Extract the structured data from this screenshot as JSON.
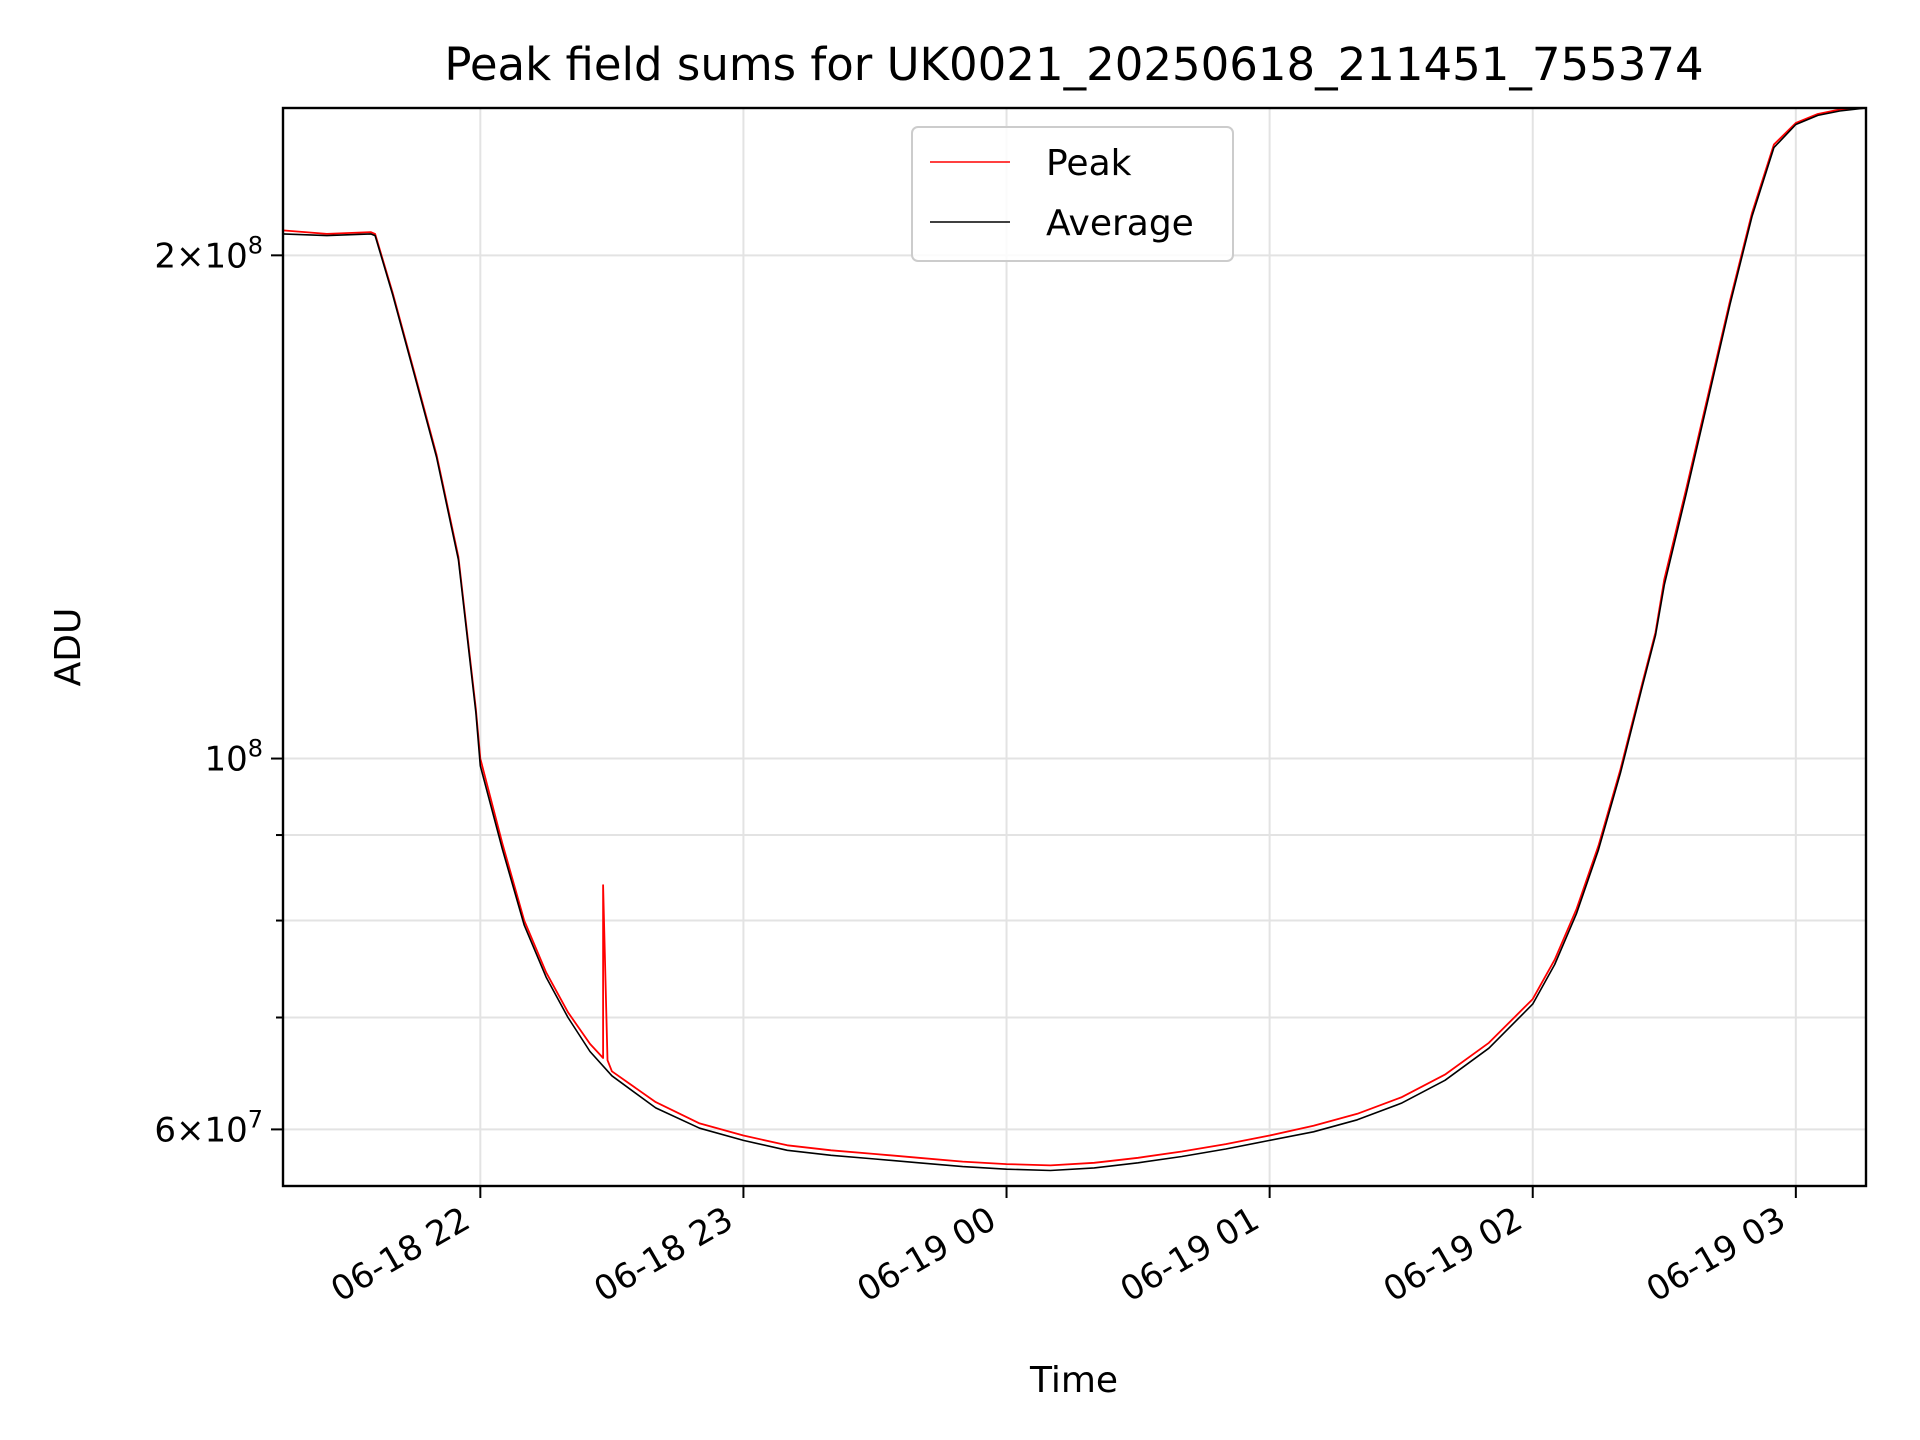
{
  "chart_data": {
    "type": "line",
    "title": "Peak field sums for UK0021_20250618_211451_755374",
    "xlabel": "Time",
    "ylabel": "ADU",
    "y_scale": "log",
    "x_range": [
      "2025-06-18 21:15",
      "2025-06-19 03:16"
    ],
    "ylim": [
      55500000,
      245000000
    ],
    "grid": true,
    "legend_position": "top-center",
    "x_ticks": [
      {
        "value": "2025-06-18 22:00",
        "label": "06-18 22"
      },
      {
        "value": "2025-06-18 23:00",
        "label": "06-18 23"
      },
      {
        "value": "2025-06-19 00:00",
        "label": "06-19 00"
      },
      {
        "value": "2025-06-19 01:00",
        "label": "06-19 01"
      },
      {
        "value": "2025-06-19 02:00",
        "label": "06-19 02"
      },
      {
        "value": "2025-06-19 03:00",
        "label": "06-19 03"
      }
    ],
    "y_ticks": [
      {
        "value": 60000000,
        "base": "6",
        "exp": "7"
      },
      {
        "value": 100000000,
        "base": "",
        "exp": "8"
      },
      {
        "value": 200000000,
        "base": "2",
        "exp": "8"
      }
    ],
    "y_minor_ticks": [
      70000000,
      80000000,
      90000000
    ],
    "series": [
      {
        "name": "Peak",
        "color": "#ff0000",
        "x": [
          "2025-06-18 21:15",
          "2025-06-18 21:25",
          "2025-06-18 21:35",
          "2025-06-18 21:36",
          "2025-06-18 21:40",
          "2025-06-18 21:45",
          "2025-06-18 21:50",
          "2025-06-18 21:55",
          "2025-06-18 21:59",
          "2025-06-18 22:00",
          "2025-06-18 22:05",
          "2025-06-18 22:10",
          "2025-06-18 22:15",
          "2025-06-18 22:20",
          "2025-06-18 22:25",
          "2025-06-18 22:28",
          "2025-06-18 22:28",
          "2025-06-18 22:29",
          "2025-06-18 22:30",
          "2025-06-18 22:40",
          "2025-06-18 22:50",
          "2025-06-18 23:00",
          "2025-06-18 23:10",
          "2025-06-18 23:20",
          "2025-06-18 23:30",
          "2025-06-18 23:40",
          "2025-06-18 23:50",
          "2025-06-19 00:00",
          "2025-06-19 00:10",
          "2025-06-19 00:20",
          "2025-06-19 00:30",
          "2025-06-19 00:40",
          "2025-06-19 00:50",
          "2025-06-19 01:00",
          "2025-06-19 01:10",
          "2025-06-19 01:20",
          "2025-06-19 01:30",
          "2025-06-19 01:40",
          "2025-06-19 01:50",
          "2025-06-19 02:00",
          "2025-06-19 02:05",
          "2025-06-19 02:10",
          "2025-06-19 02:15",
          "2025-06-19 02:20",
          "2025-06-19 02:25",
          "2025-06-19 02:28",
          "2025-06-19 02:30",
          "2025-06-19 02:35",
          "2025-06-19 02:40",
          "2025-06-19 02:45",
          "2025-06-19 02:50",
          "2025-06-19 02:55",
          "2025-06-19 03:00",
          "2025-06-19 03:05",
          "2025-06-19 03:10",
          "2025-06-19 03:16"
        ],
        "y": [
          207000000,
          206000000,
          206500000,
          206000000,
          190000000,
          170000000,
          152000000,
          132000000,
          107000000,
          100000000,
          89000000,
          80000000,
          74500000,
          70500000,
          67500000,
          66200000,
          84000000,
          66000000,
          65000000,
          62300000,
          60500000,
          59500000,
          58700000,
          58300000,
          58000000,
          57700000,
          57400000,
          57200000,
          57100000,
          57300000,
          57700000,
          58200000,
          58800000,
          59500000,
          60300000,
          61300000,
          62700000,
          64700000,
          67600000,
          71800000,
          75800000,
          81300000,
          88700000,
          98500000,
          111000000,
          119000000,
          128000000,
          145000000,
          165000000,
          188000000,
          212000000,
          233000000,
          240000000,
          243000000,
          244500000,
          245000000
        ]
      },
      {
        "name": "Average",
        "color": "#000000",
        "x": [
          "2025-06-18 21:15",
          "2025-06-18 21:25",
          "2025-06-18 21:35",
          "2025-06-18 21:36",
          "2025-06-18 21:40",
          "2025-06-18 21:45",
          "2025-06-18 21:50",
          "2025-06-18 21:55",
          "2025-06-18 21:59",
          "2025-06-18 22:00",
          "2025-06-18 22:05",
          "2025-06-18 22:10",
          "2025-06-18 22:15",
          "2025-06-18 22:20",
          "2025-06-18 22:25",
          "2025-06-18 22:30",
          "2025-06-18 22:40",
          "2025-06-18 22:50",
          "2025-06-18 23:00",
          "2025-06-18 23:10",
          "2025-06-18 23:20",
          "2025-06-18 23:30",
          "2025-06-18 23:40",
          "2025-06-18 23:50",
          "2025-06-19 00:00",
          "2025-06-19 00:10",
          "2025-06-19 00:20",
          "2025-06-19 00:30",
          "2025-06-19 00:40",
          "2025-06-19 00:50",
          "2025-06-19 01:00",
          "2025-06-19 01:10",
          "2025-06-19 01:20",
          "2025-06-19 01:30",
          "2025-06-19 01:40",
          "2025-06-19 01:50",
          "2025-06-19 02:00",
          "2025-06-19 02:05",
          "2025-06-19 02:10",
          "2025-06-19 02:15",
          "2025-06-19 02:20",
          "2025-06-19 02:25",
          "2025-06-19 02:28",
          "2025-06-19 02:30",
          "2025-06-19 02:35",
          "2025-06-19 02:40",
          "2025-06-19 02:45",
          "2025-06-19 02:50",
          "2025-06-19 02:55",
          "2025-06-19 03:00",
          "2025-06-19 03:05",
          "2025-06-19 03:10",
          "2025-06-19 03:16"
        ],
        "y": [
          206000000,
          205500000,
          206000000,
          205500000,
          189500000,
          169500000,
          151500000,
          131500000,
          106500000,
          99000000,
          88300000,
          79500000,
          74000000,
          70000000,
          66800000,
          64600000,
          61800000,
          60100000,
          59100000,
          58300000,
          57900000,
          57600000,
          57300000,
          57000000,
          56800000,
          56700000,
          56900000,
          57300000,
          57800000,
          58400000,
          59100000,
          59800000,
          60800000,
          62200000,
          64200000,
          67100000,
          71300000,
          75300000,
          80800000,
          88200000,
          98000000,
          110500000,
          118500000,
          127000000,
          144000000,
          164000000,
          187000000,
          211000000,
          232000000,
          239500000,
          242500000,
          244000000,
          245000000
        ]
      }
    ]
  }
}
